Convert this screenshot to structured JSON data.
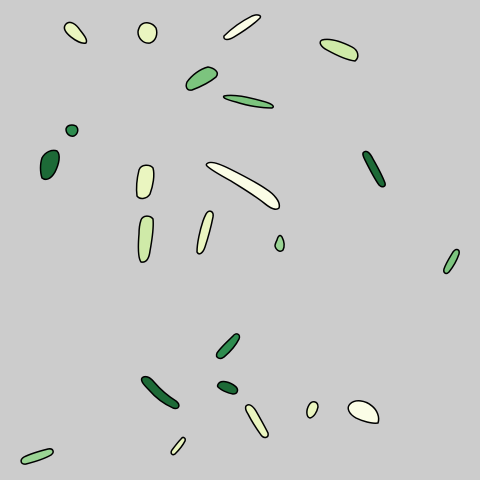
{
  "scene": {
    "background": "#cccccc",
    "outline_color": "#000000",
    "palette": {
      "cream": "#fbfde6",
      "pale_yellow_green": "#eaf5c0",
      "light_green": "#cfeaa8",
      "mid_green": "#9ad494",
      "green": "#7cc47e",
      "dark_green": "#2e8c4f",
      "forest_green": "#1d6a37"
    },
    "fragment_count": 25
  }
}
